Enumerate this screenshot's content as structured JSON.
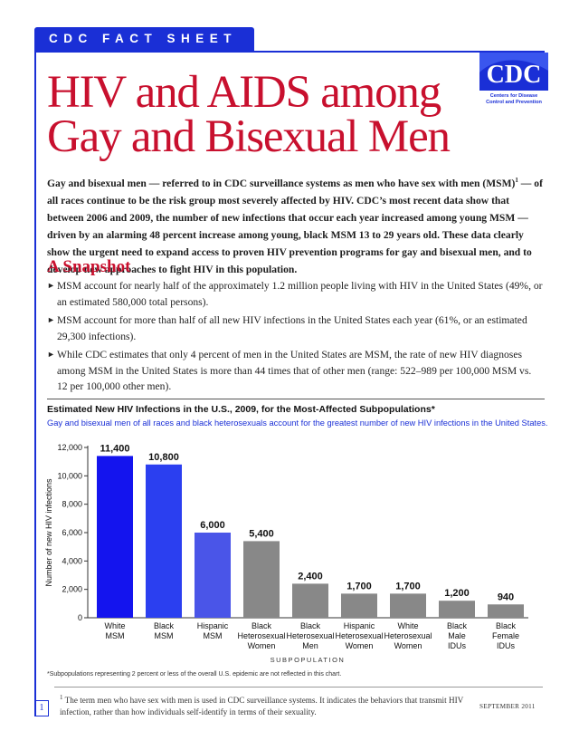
{
  "header": {
    "banner": "CDC FACT SHEET"
  },
  "logo": {
    "text": "CDC",
    "line1": "Centers for Disease",
    "line2": "Control and Prevention"
  },
  "title": {
    "line1": "HIV and AIDS among",
    "line2": "Gay and Bisexual Men"
  },
  "intro": {
    "part1": "Gay and bisexual men — referred to in CDC surveillance systems as men who have sex with men (MSM)",
    "sup": "1",
    "part2": " — of all races continue to be the risk group most severely affected by HIV. CDC’s most recent data show that between 2006 and 2009, the number of new infections that occur each year increased among young MSM — driven by an alarming 48 percent increase among young, black MSM 13 to 29 years old. These data clearly show the urgent need to expand access to proven HIV prevention programs for gay and bisexual men, and to develop new approaches to fight HIV in this population."
  },
  "snapshot": {
    "heading": "A Snapshot",
    "bullet_symbol": "►",
    "bullets": [
      "MSM account for nearly half of the approximately 1.2 million people living with HIV in the United States (49%, or an estimated 580,000 total persons).",
      "MSM account for more than half of all new HIV infections in the United States each year (61%, or an estimated 29,300 infections).",
      "While CDC estimates that only 4 percent of men in the United States are MSM, the rate of new HIV diagnoses among MSM in the United States is more than 44 times that of other men (range: 522–989 per 100,000 MSM vs. 12 per 100,000 other men)."
    ]
  },
  "chart_section": {
    "title": "Estimated New HIV Infections in the U.S., 2009, for the Most-Affected Subpopulations*",
    "subtitle": "Gay and bisexual men of all races and black heterosexuals account for the greatest number of new HIV infections in the United States.",
    "footnote": "*Subpopulations representing 2 percent or less of the overall U.S. epidemic are not reflected in this chart."
  },
  "chart_data": {
    "type": "bar",
    "ylabel": "Number of new HIV infections",
    "xlabel": "SUBPOPULATION",
    "ylim": [
      0,
      12000
    ],
    "yticks": [
      "0",
      "2,000",
      "4,000",
      "6,000",
      "8,000",
      "10,000",
      "12,000"
    ],
    "categories": [
      [
        "White",
        "MSM"
      ],
      [
        "Black",
        "MSM"
      ],
      [
        "Hispanic",
        "MSM"
      ],
      [
        "Black",
        "Heterosexual",
        "Women"
      ],
      [
        "Black",
        "Heterosexual",
        "Men"
      ],
      [
        "Hispanic",
        "Heterosexual",
        "Women"
      ],
      [
        "White",
        "Heterosexual",
        "Women"
      ],
      [
        "Black",
        "Male",
        "IDUs"
      ],
      [
        "Black",
        "Female",
        "IDUs"
      ]
    ],
    "values": [
      11400,
      10800,
      6000,
      5400,
      2400,
      1700,
      1700,
      1200,
      940
    ],
    "value_labels": [
      "11,400",
      "10,800",
      "6,000",
      "5,400",
      "2,400",
      "1,700",
      "1,700",
      "1,200",
      "940"
    ],
    "colors": [
      "#1414ee",
      "#2b3ff0",
      "#4a55e8",
      "#888888",
      "#888888",
      "#888888",
      "#888888",
      "#888888",
      "#888888"
    ],
    "grid": false
  },
  "footer": {
    "page_number": "1",
    "footnote_num": "1",
    "footnote_text": "The term men who have sex with men is used in CDC surveillance systems. It indicates the behaviors that transmit HIV infection, rather than how individuals self-identify in terms of their sexuality.",
    "date": "SEPTEMBER 2011"
  }
}
